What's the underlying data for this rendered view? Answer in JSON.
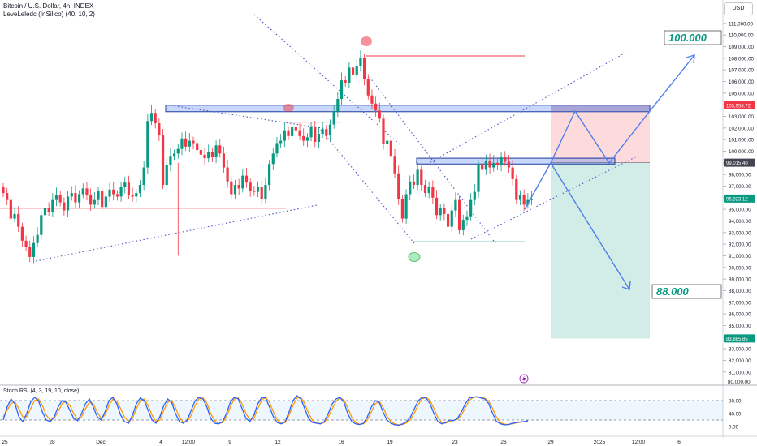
{
  "header": {
    "symbol": "Bitcoin / U.S. Dollar, 4h, INDEX",
    "indicator": "LeveLeledc (InSilico) (40, 10, 2)",
    "currency": "USD"
  },
  "chart_data": {
    "type": "candlestick",
    "price_axis": {
      "range": [
        80000,
        112000
      ],
      "ticks": [
        81000,
        82000,
        83000,
        84000,
        85000,
        86000,
        87000,
        88000,
        89000,
        90000,
        91000,
        92000,
        93000,
        94000,
        95000,
        96000,
        97000,
        98000,
        99000,
        100000,
        101000,
        102000,
        103000,
        104000,
        105000,
        106000,
        107000,
        108000,
        109000,
        110000,
        111000
      ],
      "tick_labels": [
        "81,000.00",
        "82,000.00",
        "83,000.00",
        "84,000.00",
        "85,000.00",
        "86,000.00",
        "87,000.00",
        "88,000.00",
        "89,000.00",
        "90,000.00",
        "91,000.00",
        "92,000.00",
        "93,000.00",
        "94,000.00",
        "95,000.00",
        "96,000.00",
        "97,000.00",
        "98,000.00",
        "99,000.00",
        "100,000.00",
        "101,000.00",
        "102,000.00",
        "103,000.00",
        "104,000.00",
        "105,000.00",
        "106,000.00",
        "107,000.00",
        "108,000.00",
        "109,000.00",
        "110,000.00",
        "111,000.00"
      ],
      "bottom_label": "80,000.00",
      "price_labels": [
        {
          "text": "103,958.72",
          "value": 103958.72,
          "color": "#f23645"
        },
        {
          "text": "99,015.40",
          "value": 99015.4,
          "color": "#434651"
        },
        {
          "text": "95,923.12",
          "value": 95923.12,
          "color": "#089981"
        },
        {
          "text": "83,885.85",
          "value": 83885.85,
          "color": "#089981"
        }
      ]
    },
    "time_axis": {
      "labels": [
        "25",
        "28",
        "Dec",
        "4",
        "12:00",
        "9",
        "12",
        "16",
        "19",
        "23",
        "26",
        "29",
        "2025",
        "12:00",
        "6"
      ]
    },
    "annotations": {
      "target_up": "100.000",
      "target_down": "88.000"
    },
    "closes": [
      96400,
      95800,
      94200,
      94600,
      93500,
      92300,
      91800,
      90900,
      92100,
      92800,
      94500,
      95100,
      94800,
      95800,
      96200,
      95600,
      94900,
      96100,
      96400,
      95600,
      96300,
      96800,
      96200,
      95400,
      95800,
      96600,
      95200,
      96100,
      96700,
      96300,
      96100,
      96900,
      97300,
      96200,
      96100,
      96400,
      97100,
      98600,
      102600,
      103300,
      102400,
      101400,
      97100,
      98800,
      99600,
      99800,
      100200,
      101100,
      100400,
      100900,
      100700,
      100100,
      99700,
      99400,
      99900,
      99500,
      100500,
      99800,
      98600,
      97400,
      96300,
      97100,
      96800,
      97900,
      97300,
      96600,
      96500,
      96900,
      95900,
      97100,
      98900,
      99800,
      100700,
      100900,
      101800,
      101300,
      102100,
      101800,
      101300,
      100900,
      101200,
      102100,
      100800,
      101500,
      101900,
      101400,
      102300,
      103400,
      104500,
      106100,
      105900,
      107200,
      106600,
      107300,
      108000,
      106200,
      104800,
      104100,
      103500,
      102800,
      100600,
      100900,
      99600,
      98100,
      95900,
      94200,
      96300,
      97400,
      97100,
      98400,
      97100,
      96400,
      96900,
      96000,
      94500,
      95100,
      94600,
      93500,
      94900,
      95800,
      93200,
      94100,
      94400,
      95800,
      96500,
      98900,
      98400,
      99200,
      98600,
      99000,
      98800,
      99500,
      99100,
      98600,
      97600,
      95800,
      96200,
      95400,
      95800,
      95900
    ],
    "levels": [
      {
        "name": "upper-zone",
        "low": 103400,
        "high": 103958.72
      },
      {
        "name": "mid-zone",
        "low": 98900,
        "high": 99400
      },
      {
        "name": "support-line",
        "value": 95100
      },
      {
        "name": "resistance-short",
        "value": 102500
      },
      {
        "name": "high-line",
        "value": 108200
      },
      {
        "name": "low-line",
        "value": 92200
      }
    ],
    "position": {
      "entry": 99015.4,
      "stop": 103958.72,
      "target": 83885.85
    },
    "stoch_rsi": {
      "title": "Stoch RSI (4, 3, 19, 10, close)",
      "range": [
        0,
        100
      ],
      "ticks": [
        0,
        40,
        80
      ],
      "tick_labels": [
        "0.00",
        "40.00",
        "80.00"
      ],
      "bands": [
        20,
        80
      ],
      "k": [
        20,
        60,
        85,
        70,
        30,
        15,
        40,
        75,
        90,
        80,
        45,
        20,
        15,
        30,
        60,
        80,
        75,
        50,
        25,
        18,
        40,
        70,
        85,
        60,
        30,
        20,
        45,
        80,
        90,
        70,
        35,
        15,
        10,
        35,
        70,
        88,
        80,
        50,
        20,
        10,
        30,
        65,
        85,
        75,
        40,
        15,
        10,
        20,
        50,
        80,
        90,
        85,
        60,
        25,
        10,
        8,
        15,
        40,
        75,
        90,
        85,
        55,
        25,
        15,
        35,
        70,
        90,
        88,
        60,
        30,
        12,
        8,
        15,
        45,
        80,
        95,
        85,
        55,
        25,
        12,
        10,
        8,
        15,
        40,
        70,
        85,
        90,
        75,
        40,
        15,
        8,
        6,
        10,
        30,
        60,
        80,
        75,
        45,
        20,
        10,
        5,
        4,
        8,
        15,
        30,
        55,
        80,
        90,
        88,
        70,
        40,
        15,
        8,
        12,
        20,
        18,
        25,
        45,
        70,
        88,
        90,
        92,
        88,
        85,
        70,
        40,
        15,
        8,
        5,
        6,
        10,
        12,
        14,
        15,
        18
      ],
      "d": [
        30,
        50,
        72,
        75,
        55,
        30,
        30,
        55,
        80,
        85,
        65,
        35,
        20,
        25,
        45,
        70,
        78,
        65,
        40,
        22,
        30,
        55,
        75,
        70,
        45,
        25,
        35,
        65,
        85,
        78,
        55,
        28,
        15,
        25,
        55,
        80,
        85,
        65,
        35,
        15,
        20,
        50,
        75,
        80,
        58,
        28,
        13,
        15,
        35,
        65,
        85,
        88,
        72,
        40,
        18,
        9,
        12,
        30,
        60,
        85,
        88,
        70,
        40,
        20,
        25,
        55,
        82,
        90,
        75,
        45,
        20,
        10,
        12,
        35,
        65,
        88,
        90,
        70,
        40,
        18,
        11,
        9,
        12,
        30,
        55,
        78,
        88,
        82,
        58,
        28,
        12,
        7,
        8,
        20,
        45,
        70,
        78,
        60,
        32,
        15,
        8,
        5,
        6,
        11,
        22,
        42,
        68,
        85,
        90,
        80,
        55,
        28,
        12,
        10,
        16,
        19,
        22,
        35,
        58,
        80,
        90,
        91,
        90,
        87,
        78,
        55,
        28,
        12,
        7,
        6,
        8,
        11,
        13,
        15,
        16
      ]
    }
  }
}
